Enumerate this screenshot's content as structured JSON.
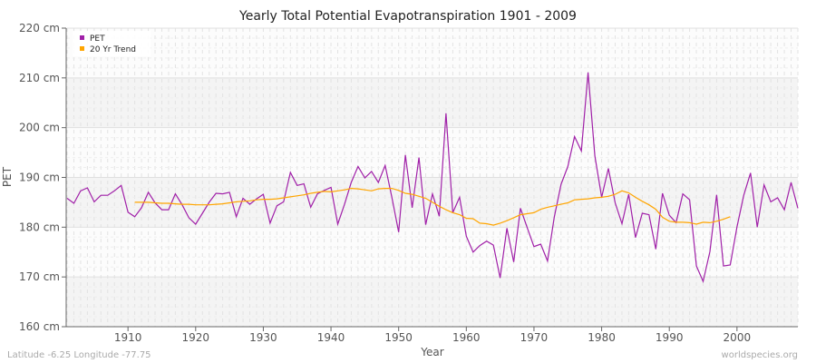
{
  "chart_data": {
    "type": "line",
    "title": "Yearly Total Potential Evapotranspiration 1901 - 2009",
    "xlabel": "Year",
    "ylabel": "PET",
    "ylim": [
      160,
      220
    ],
    "xlim": [
      1901,
      2009
    ],
    "y_unit": "cm",
    "yticks": [
      "160 cm",
      "170 cm",
      "180 cm",
      "190 cm",
      "200 cm",
      "210 cm",
      "220 cm"
    ],
    "xticks": [
      "1910",
      "1920",
      "1930",
      "1940",
      "1950",
      "1960",
      "1970",
      "1980",
      "1990",
      "2000"
    ],
    "grid": true,
    "legend_position": "top-left",
    "series": [
      {
        "name": "PET",
        "color": "#a020a8",
        "x_start": 1901,
        "values": [
          185.8,
          184.8,
          187.3,
          187.9,
          185.1,
          186.4,
          186.4,
          187.3,
          188.4,
          183.0,
          182.1,
          183.9,
          187.0,
          184.9,
          183.5,
          183.5,
          186.7,
          184.5,
          181.9,
          180.6,
          182.8,
          185.0,
          186.8,
          186.7,
          187.0,
          182.1,
          185.8,
          184.6,
          185.7,
          186.6,
          180.8,
          184.3,
          185.1,
          191.0,
          188.4,
          188.7,
          184.0,
          186.7,
          187.4,
          188.0,
          180.6,
          184.6,
          189.0,
          192.2,
          189.9,
          191.2,
          189.0,
          192.4,
          186.0,
          179.0,
          194.5,
          183.9,
          194.0,
          180.5,
          186.7,
          182.2,
          202.9,
          182.9,
          186.0,
          178.2,
          175.0,
          176.3,
          177.2,
          176.4,
          169.8,
          179.8,
          173.0,
          183.8,
          179.9,
          176.1,
          176.6,
          173.2,
          182.0,
          188.6,
          192.2,
          198.2,
          195.3,
          211.1,
          194.3,
          186.0,
          191.8,
          184.9,
          180.7,
          186.6,
          177.9,
          182.8,
          182.5,
          175.6,
          186.8,
          182.4,
          180.9,
          186.7,
          185.5,
          172.2,
          169.1,
          175.1,
          186.5,
          172.2,
          172.4,
          180.0,
          186.4,
          190.9,
          180.0,
          188.5,
          185.1,
          185.9,
          183.5,
          189.0,
          183.8
        ]
      },
      {
        "name": "20 Yr Trend",
        "color": "#ffa500",
        "x_start": 1911,
        "values": [
          185.0,
          185.0,
          185.0,
          184.9,
          184.8,
          184.8,
          184.7,
          184.6,
          184.6,
          184.5,
          184.5,
          184.5,
          184.6,
          184.7,
          184.9,
          185.1,
          185.2,
          185.3,
          185.5,
          185.6,
          185.6,
          185.7,
          185.9,
          186.1,
          186.3,
          186.5,
          186.8,
          187.0,
          187.2,
          187.1,
          187.3,
          187.5,
          187.8,
          187.7,
          187.5,
          187.3,
          187.7,
          187.8,
          187.8,
          187.4,
          186.8,
          186.6,
          186.2,
          185.8,
          185.0,
          184.2,
          183.5,
          182.9,
          182.5,
          181.8,
          181.7,
          180.8,
          180.7,
          180.4,
          180.8,
          181.3,
          181.9,
          182.5,
          182.7,
          182.9,
          183.6,
          184.0,
          184.3,
          184.6,
          184.9,
          185.5,
          185.6,
          185.7,
          185.9,
          186.0,
          186.2,
          186.6,
          187.3,
          186.9,
          186.0,
          185.2,
          184.5,
          183.6,
          182.0,
          181.2,
          181.0,
          181.0,
          180.9,
          180.6,
          181.0,
          180.9,
          181.2,
          181.6,
          182.1
        ]
      }
    ]
  },
  "footer": {
    "location": "Latitude -6.25 Longitude -77.75",
    "source": "worldspecies.org"
  }
}
